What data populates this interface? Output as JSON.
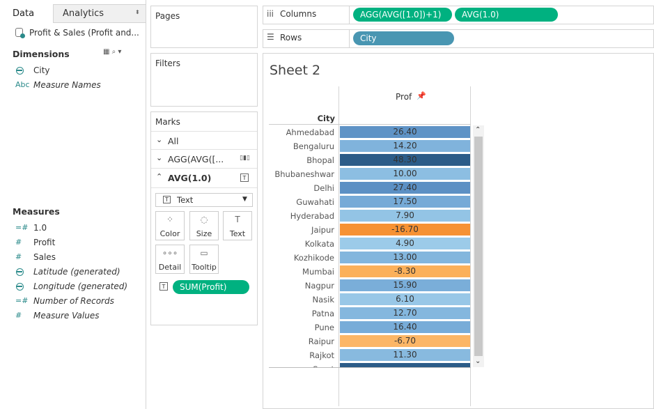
{
  "data_pane": {
    "tabs": [
      "Data",
      "Analytics"
    ],
    "datasource": "Profit & Sales (Profit and...",
    "dimensions": {
      "title": "Dimensions",
      "items": [
        {
          "icon": "globe",
          "label": "City",
          "italic": false
        },
        {
          "icon": "Abc",
          "label": "Measure Names",
          "italic": true
        }
      ]
    },
    "measures": {
      "title": "Measures",
      "items": [
        {
          "icon": "=#",
          "label": "1.0",
          "italic": false
        },
        {
          "icon": "#",
          "label": "Profit",
          "italic": false
        },
        {
          "icon": "#",
          "label": "Sales",
          "italic": false
        },
        {
          "icon": "globe",
          "label": "Latitude (generated)",
          "italic": true
        },
        {
          "icon": "globe",
          "label": "Longitude (generated)",
          "italic": true
        },
        {
          "icon": "=#",
          "label": "Number of Records",
          "italic": true
        },
        {
          "icon": "#",
          "label": "Measure Values",
          "italic": true
        }
      ]
    }
  },
  "cards": {
    "pages": "Pages",
    "filters": "Filters",
    "marks": {
      "title": "Marks",
      "layers": [
        "All",
        "AGG(AVG([...",
        "AVG(1.0)"
      ],
      "mark_type": "Text",
      "buttons": [
        "Color",
        "Size",
        "Text",
        "Detail",
        "Tooltip"
      ],
      "pill": "SUM(Profit)"
    }
  },
  "shelves": {
    "columns": {
      "label": "Columns",
      "pills": [
        "AGG(AVG([1.0])+1)",
        "AVG(1.0)"
      ]
    },
    "rows": {
      "label": "Rows",
      "pills": [
        "City"
      ]
    }
  },
  "sheet": {
    "title": "Sheet 2",
    "column_header": "Prof",
    "row_header": "City",
    "rows": [
      {
        "city": "Ahmedabad",
        "value": "26.40",
        "color": "#5f93c6"
      },
      {
        "city": "Bengaluru",
        "value": "14.20",
        "color": "#80b3dc"
      },
      {
        "city": "Bhopal",
        "value": "48.30",
        "color": "#2c5c88"
      },
      {
        "city": "Bhubaneshwar",
        "value": "10.00",
        "color": "#8cbee2"
      },
      {
        "city": "Delhi",
        "value": "27.40",
        "color": "#5c90c4"
      },
      {
        "city": "Guwahati",
        "value": "17.50",
        "color": "#76aad7"
      },
      {
        "city": "Hyderabad",
        "value": "7.90",
        "color": "#93c4e5"
      },
      {
        "city": "Jaipur",
        "value": "-16.70",
        "color": "#f69234"
      },
      {
        "city": "Kolkata",
        "value": "4.90",
        "color": "#9ccbe9"
      },
      {
        "city": "Kozhikode",
        "value": "13.00",
        "color": "#83b6dd"
      },
      {
        "city": "Mumbai",
        "value": "-8.30",
        "color": "#fbb05a"
      },
      {
        "city": "Nagpur",
        "value": "15.90",
        "color": "#7aaed9"
      },
      {
        "city": "Nasik",
        "value": "6.10",
        "color": "#98c7e7"
      },
      {
        "city": "Patna",
        "value": "12.70",
        "color": "#84b7de"
      },
      {
        "city": "Pune",
        "value": "16.40",
        "color": "#78acd8"
      },
      {
        "city": "Raipur",
        "value": "-6.70",
        "color": "#fcb666"
      },
      {
        "city": "Rajkot",
        "value": "11.30",
        "color": "#88badf"
      },
      {
        "city": "Surat",
        "color": "#2c5c88"
      }
    ]
  }
}
